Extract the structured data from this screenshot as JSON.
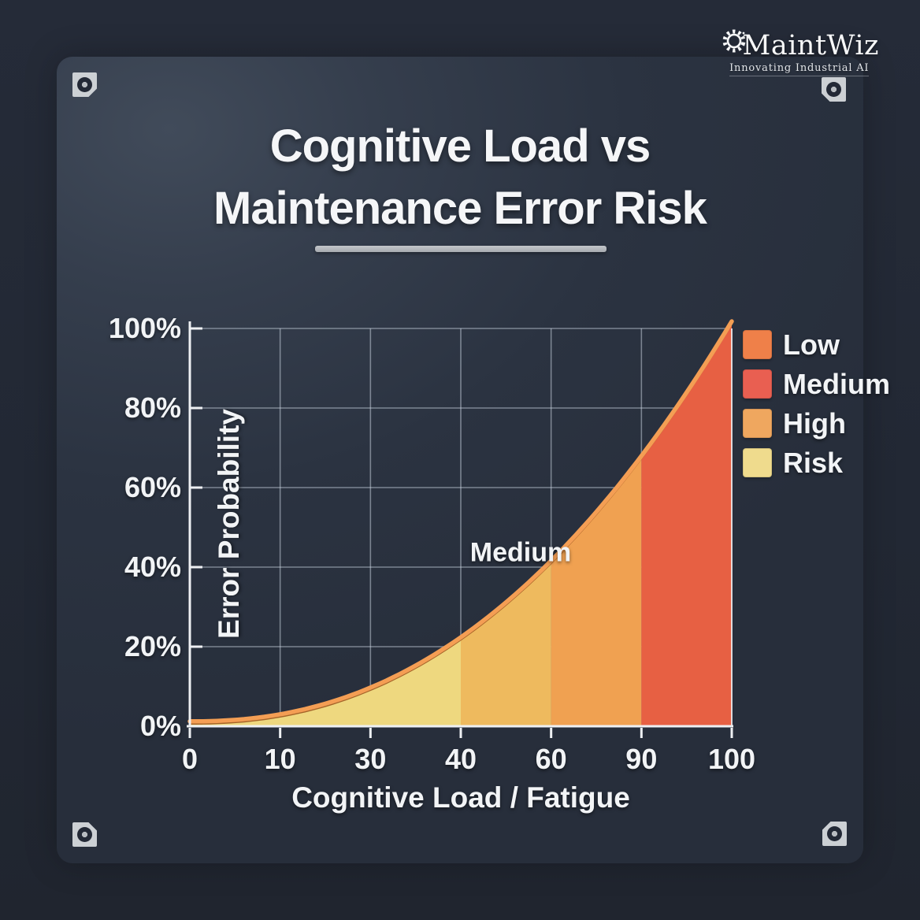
{
  "logo": {
    "name": "MaintWiz",
    "tagline": "Innovating Industrial AI"
  },
  "title": {
    "line1": "Cognitive Load vs",
    "line2": "Maintenance Error Risk"
  },
  "chart_data": {
    "type": "area",
    "title": "Cognitive Load vs Maintenance Error Risk",
    "xlabel": "Cognitive Load / Fatigue",
    "ylabel": "Error Probability",
    "x_ticks": [
      "0",
      "10",
      "30",
      "40",
      "60",
      "90",
      "100"
    ],
    "y_ticks": [
      "0%",
      "20%",
      "40%",
      "60%",
      "80%",
      "100%"
    ],
    "ylim": [
      0,
      100
    ],
    "grid": true,
    "series": [
      {
        "name": "Error Probability",
        "x": [
          0,
          10,
          30,
          40,
          60,
          90,
          100
        ],
        "values": [
          1,
          3,
          9,
          21,
          40,
          66,
          100
        ],
        "line_color": "#f49e54",
        "line_shadow_color": "#9c5820"
      }
    ],
    "curve_exponent": 2.25,
    "bands": [
      {
        "from_tick": 0,
        "to_tick": 3,
        "color": "#eed87f",
        "meaning": "under-curve fill 0-40"
      },
      {
        "from_tick": 3,
        "to_tick": 4,
        "color": "#eeba5e",
        "meaning": "under-curve fill 40-60"
      },
      {
        "from_tick": 4,
        "to_tick": 5,
        "color": "#f0a151",
        "meaning": "under-curve fill 60-90"
      },
      {
        "from_tick": 5,
        "to_tick": 6,
        "color": "#e76043",
        "meaning": "under-curve fill 90-100"
      }
    ],
    "annotation": {
      "text": "Medium"
    },
    "legend": {
      "position": "right",
      "items": [
        {
          "label": "Low",
          "color": "#ef8049"
        },
        {
          "label": "Medium",
          "color": "#e95f51"
        },
        {
          "label": "High",
          "color": "#efa75f"
        },
        {
          "label": "Risk",
          "color": "#efdb8d"
        }
      ]
    }
  },
  "colors": {
    "background": "#242a36",
    "panel": "#2e3645",
    "text": "#f4f6f8",
    "grid": "#aab4c2",
    "axis": "#eef0f3",
    "title_underline": "#b4b7bb",
    "corner_mark": "#ccd0d4"
  }
}
